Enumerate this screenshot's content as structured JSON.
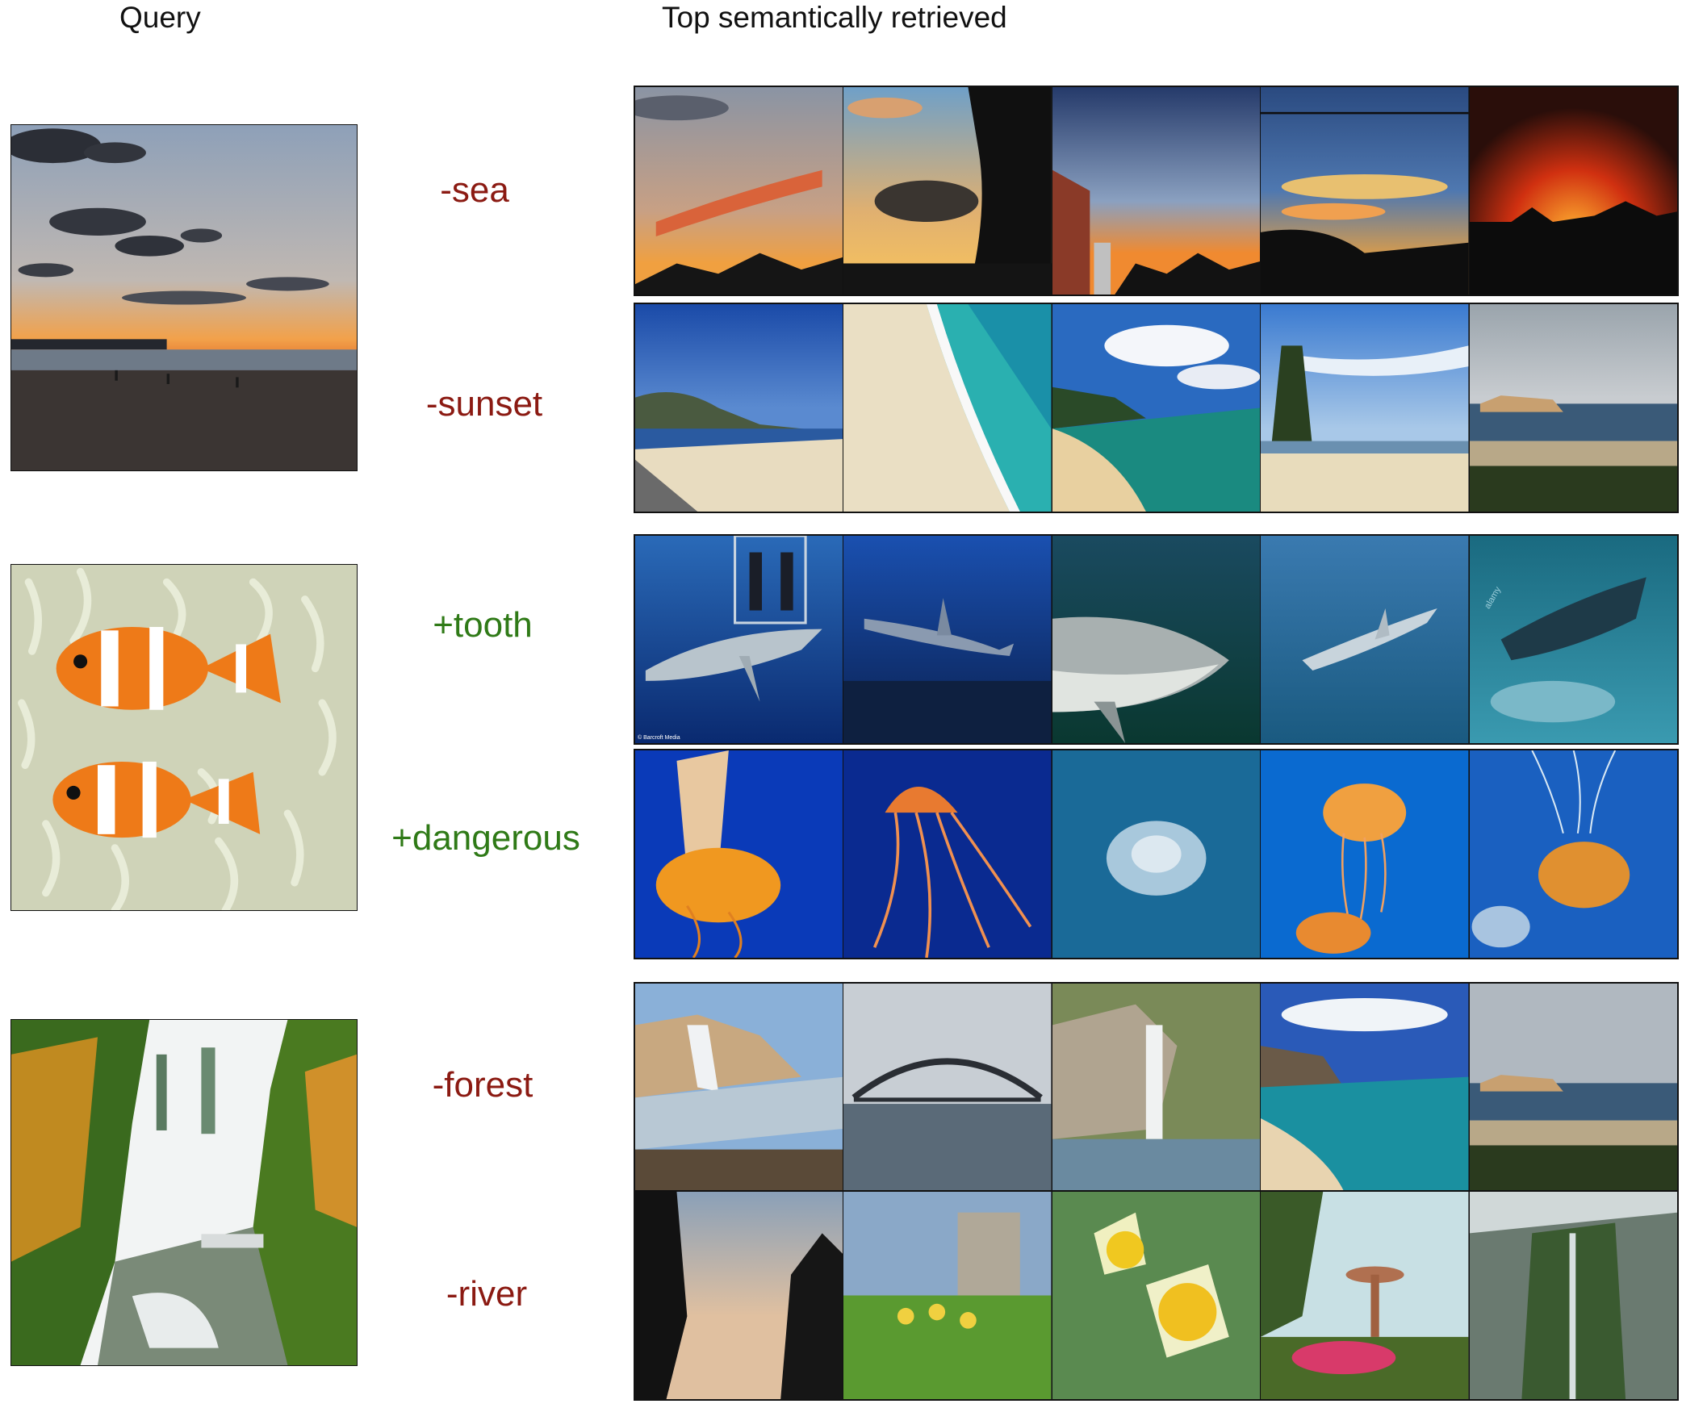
{
  "headers": {
    "query": "Query",
    "retrieved": "Top semantically retrieved"
  },
  "groups": [
    {
      "query_image": "beach sunset with clouds and people on sand",
      "modifiers": [
        {
          "text": "-sea",
          "sign": "negative"
        },
        {
          "text": "-sunset",
          "sign": "negative"
        }
      ]
    },
    {
      "query_image": "two clownfish in sea anemone",
      "modifiers": [
        {
          "text": "+tooth",
          "sign": "positive"
        },
        {
          "text": "+dangerous",
          "sign": "positive"
        }
      ]
    },
    {
      "query_image": "river flowing through autumn forest",
      "modifiers": [
        {
          "text": "-forest",
          "sign": "negative"
        },
        {
          "text": "-river",
          "sign": "negative"
        }
      ]
    }
  ],
  "watermarks": {
    "shark1_credit": "© Barcroft Media",
    "shark5_mark": "alamy"
  },
  "colors": {
    "negative": "#8b1a12",
    "positive": "#2f7a17"
  }
}
